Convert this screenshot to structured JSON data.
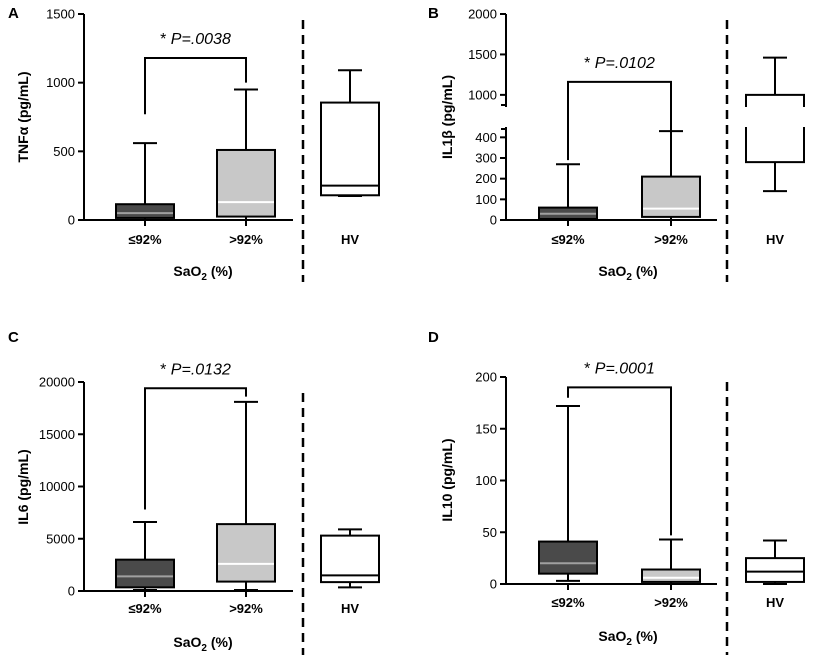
{
  "chart_data": [
    {
      "type": "box",
      "panel": "A",
      "ylabel": "TNFα (pg/mL)",
      "xlabel": "SaO",
      "xlabel_sub": "2",
      "xlabel_suffix": " (%)",
      "ylim": [
        0,
        1500
      ],
      "yticks": [
        0,
        500,
        1000,
        1500
      ],
      "ytick_labels": [
        "0",
        "500",
        "1000",
        "1500"
      ],
      "groups": [
        {
          "name": "≤92%",
          "fill": "#4a4a4a",
          "median_color": "#a0a0a0",
          "min": 0,
          "q1": 15,
          "median": 50,
          "q3": 115,
          "max": 560
        },
        {
          "name": ">92%",
          "fill": "#c8c8c8",
          "median_color": "#ffffff",
          "min": 0,
          "q1": 25,
          "median": 130,
          "q3": 510,
          "max": 950
        },
        {
          "name": "HV",
          "fill": "#ffffff",
          "median_color": "#000000",
          "min": 175,
          "q1": 180,
          "median": 250,
          "q3": 855,
          "max": 1090
        }
      ],
      "annotation": {
        "star": "* ",
        "text": "P=.0038"
      },
      "bracket": {
        "from": 0,
        "to": 1,
        "top": 1180,
        "left_end": 770,
        "right_end": 1000
      }
    },
    {
      "type": "box",
      "panel": "B",
      "ylabel": "IL1β (pg/mL)",
      "xlabel": "SaO",
      "xlabel_sub": "2",
      "xlabel_suffix": " (%)",
      "broken_axis": true,
      "ylim_lower": [
        0,
        450
      ],
      "ylim_upper": [
        850,
        2000
      ],
      "yticks": [
        0,
        100,
        200,
        300,
        400,
        1000,
        1500,
        2000
      ],
      "ytick_labels": [
        "0",
        "100",
        "200",
        "300",
        "400",
        "1000",
        "1500",
        "2000"
      ],
      "groups": [
        {
          "name": "≤92%",
          "fill": "#4a4a4a",
          "median_color": "#a0a0a0",
          "min": 0,
          "q1": 5,
          "median": 30,
          "q3": 60,
          "max": 270
        },
        {
          "name": ">92%",
          "fill": "#c8c8c8",
          "median_color": "#ffffff",
          "min": 0,
          "q1": 15,
          "median": 55,
          "q3": 210,
          "max": 430
        },
        {
          "name": "HV",
          "fill": "#ffffff",
          "median_color": "#000000",
          "min": 140,
          "q1": 280,
          "median": 380,
          "q3": 1000,
          "max": 1460
        }
      ],
      "annotation": {
        "star": "* ",
        "text": "P=.0102"
      },
      "bracket": {
        "from": 0,
        "to": 1,
        "top": 1160,
        "left_end": 290,
        "right_end": 460
      }
    },
    {
      "type": "box",
      "panel": "C",
      "ylabel": "IL6 (pg/mL)",
      "xlabel": "SaO",
      "xlabel_sub": "2",
      "xlabel_suffix": " (%)",
      "ylim": [
        0,
        20000
      ],
      "yticks": [
        0,
        5000,
        10000,
        15000,
        20000
      ],
      "ytick_labels": [
        "0",
        "5000",
        "10000",
        "15000",
        "20000"
      ],
      "groups": [
        {
          "name": "≤92%",
          "fill": "#4a4a4a",
          "median_color": "#a0a0a0",
          "min": 100,
          "q1": 350,
          "median": 1400,
          "q3": 3000,
          "max": 6600
        },
        {
          "name": ">92%",
          "fill": "#c8c8c8",
          "median_color": "#ffffff",
          "min": 100,
          "q1": 900,
          "median": 2600,
          "q3": 6400,
          "max": 18100
        },
        {
          "name": "HV",
          "fill": "#ffffff",
          "median_color": "#000000",
          "min": 350,
          "q1": 850,
          "median": 1500,
          "q3": 5300,
          "max": 5900
        }
      ],
      "annotation": {
        "star": "* ",
        "text": "P=.0132"
      },
      "bracket": {
        "from": 0,
        "to": 1,
        "top": 19400,
        "left_end": 7800,
        "right_end": 18600
      }
    },
    {
      "type": "box",
      "panel": "D",
      "ylabel": "IL10 (pg/mL)",
      "xlabel": "SaO",
      "xlabel_sub": "2",
      "xlabel_suffix": " (%)",
      "ylim": [
        0,
        200
      ],
      "yticks": [
        0,
        50,
        100,
        150,
        200
      ],
      "ytick_labels": [
        "0",
        "50",
        "100",
        "150",
        "200"
      ],
      "groups": [
        {
          "name": "≤92%",
          "fill": "#4a4a4a",
          "median_color": "#a0a0a0",
          "min": 3,
          "q1": 10,
          "median": 20,
          "q3": 41,
          "max": 172
        },
        {
          "name": ">92%",
          "fill": "#c8c8c8",
          "median_color": "#ffffff",
          "min": 0,
          "q1": 2,
          "median": 6,
          "q3": 14,
          "max": 43
        },
        {
          "name": "HV",
          "fill": "#ffffff",
          "median_color": "#000000",
          "min": 0,
          "q1": 2,
          "median": 12,
          "q3": 25,
          "max": 42
        }
      ],
      "annotation": {
        "star": "* ",
        "text": "P=.0001"
      },
      "bracket": {
        "from": 0,
        "to": 1,
        "top": 190,
        "left_end": 180,
        "right_end": 47
      }
    }
  ]
}
